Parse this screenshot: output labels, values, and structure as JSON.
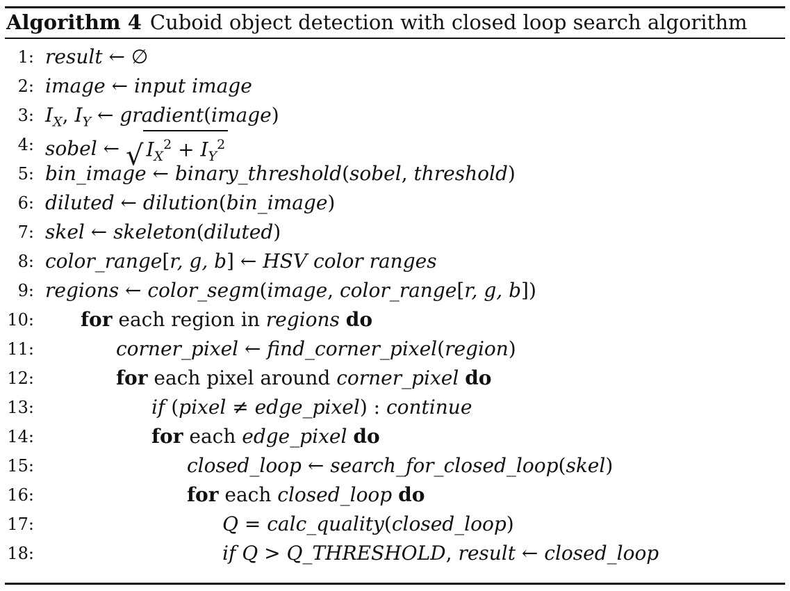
{
  "caption": {
    "label": "Algorithm 4",
    "title": "Cuboid object detection with closed loop search algorithm"
  },
  "lines": [
    {
      "n": "1:",
      "segs": [
        {
          "t": "result",
          "s": "i"
        },
        {
          "t": " ← ∅"
        }
      ]
    },
    {
      "n": "2:",
      "segs": [
        {
          "t": "image",
          "s": "i"
        },
        {
          "t": " ← "
        },
        {
          "t": "input image",
          "s": "i"
        }
      ]
    },
    {
      "n": "3:",
      "segs": [
        {
          "t": "I",
          "s": "i"
        },
        {
          "t": "X",
          "s": "i",
          "sub": true
        },
        {
          "t": ", "
        },
        {
          "t": "I",
          "s": "i"
        },
        {
          "t": "Y",
          "s": "i",
          "sub": true
        },
        {
          "t": " ← "
        },
        {
          "t": "gradient",
          "s": "i"
        },
        {
          "t": "("
        },
        {
          "t": "image",
          "s": "i"
        },
        {
          "t": ")"
        }
      ]
    },
    {
      "n": "4:",
      "segs": [
        {
          "t": "sobel",
          "s": "i"
        },
        {
          "t": " ← "
        },
        {
          "sqrt": [
            {
              "t": "I",
              "s": "i"
            },
            {
              "t": "X",
              "s": "i",
              "sub": true
            },
            {
              "t": "2",
              "sup": true
            },
            {
              "t": " + "
            },
            {
              "t": "I",
              "s": "i"
            },
            {
              "t": "Y",
              "s": "i",
              "sub": true
            },
            {
              "t": "2",
              "sup": true
            }
          ]
        }
      ]
    },
    {
      "n": "5:",
      "segs": [
        {
          "t": "bin_image",
          "s": "i"
        },
        {
          "t": " ← "
        },
        {
          "t": "binary_threshold",
          "s": "i"
        },
        {
          "t": "("
        },
        {
          "t": "sobel",
          "s": "i"
        },
        {
          "t": ", "
        },
        {
          "t": "threshold",
          "s": "i"
        },
        {
          "t": ")"
        }
      ]
    },
    {
      "n": "6:",
      "segs": [
        {
          "t": "diluted",
          "s": "i"
        },
        {
          "t": " ← "
        },
        {
          "t": "dilution",
          "s": "i"
        },
        {
          "t": "("
        },
        {
          "t": "bin_image",
          "s": "i"
        },
        {
          "t": ")"
        }
      ]
    },
    {
      "n": "7:",
      "segs": [
        {
          "t": "skel",
          "s": "i"
        },
        {
          "t": " ← "
        },
        {
          "t": "skeleton",
          "s": "i"
        },
        {
          "t": "("
        },
        {
          "t": "diluted",
          "s": "i"
        },
        {
          "t": ")"
        }
      ]
    },
    {
      "n": "8:",
      "segs": [
        {
          "t": "color_range",
          "s": "i"
        },
        {
          "t": "["
        },
        {
          "t": "r, g, b",
          "s": "i"
        },
        {
          "t": "] ← "
        },
        {
          "t": "HSV color ranges",
          "s": "i"
        }
      ]
    },
    {
      "n": "9:",
      "segs": [
        {
          "t": "regions",
          "s": "i"
        },
        {
          "t": " ← "
        },
        {
          "t": "color_segm",
          "s": "i"
        },
        {
          "t": "("
        },
        {
          "t": "image",
          "s": "i"
        },
        {
          "t": ", "
        },
        {
          "t": "color_range",
          "s": "i"
        },
        {
          "t": "["
        },
        {
          "t": "r, g, b",
          "s": "i"
        },
        {
          "t": "])"
        }
      ]
    },
    {
      "n": "10:",
      "segs": [
        {
          "t": "for",
          "s": "b"
        },
        {
          "t": " each region in "
        },
        {
          "t": "regions",
          "s": "i"
        },
        {
          "t": "  "
        },
        {
          "t": "do",
          "s": "b"
        }
      ]
    },
    {
      "n": "11:",
      "segs": [
        {
          "t": "corner_pixel",
          "s": "i"
        },
        {
          "t": " ← "
        },
        {
          "t": "find_corner_pixel",
          "s": "i"
        },
        {
          "t": "("
        },
        {
          "t": "region",
          "s": "i"
        },
        {
          "t": ")"
        }
      ]
    },
    {
      "n": "12:",
      "segs": [
        {
          "t": "for",
          "s": "b"
        },
        {
          "t": " each pixel around "
        },
        {
          "t": "corner_pixel",
          "s": "i"
        },
        {
          "t": "  "
        },
        {
          "t": "do",
          "s": "b"
        }
      ]
    },
    {
      "n": "13:",
      "segs": [
        {
          "t": "if",
          "s": "i"
        },
        {
          "t": " ("
        },
        {
          "t": "pixel",
          "s": "i"
        },
        {
          "t": " ≠ "
        },
        {
          "t": "edge_pixel",
          "s": "i"
        },
        {
          "t": ") : "
        },
        {
          "t": "continue",
          "s": "i"
        }
      ]
    },
    {
      "n": "14:",
      "segs": [
        {
          "t": "for",
          "s": "b"
        },
        {
          "t": " each "
        },
        {
          "t": "edge_pixel",
          "s": "i"
        },
        {
          "t": "  "
        },
        {
          "t": "do",
          "s": "b"
        }
      ]
    },
    {
      "n": "15:",
      "segs": [
        {
          "t": "closed_loop",
          "s": "i"
        },
        {
          "t": " ← "
        },
        {
          "t": "search_for_closed_loop",
          "s": "i"
        },
        {
          "t": "("
        },
        {
          "t": "skel",
          "s": "i"
        },
        {
          "t": ")"
        }
      ]
    },
    {
      "n": "16:",
      "segs": [
        {
          "t": "for",
          "s": "b"
        },
        {
          "t": " each "
        },
        {
          "t": "closed_loop",
          "s": "i"
        },
        {
          "t": "  "
        },
        {
          "t": "do",
          "s": "b"
        }
      ]
    },
    {
      "n": "17:",
      "segs": [
        {
          "t": "Q",
          "s": "i"
        },
        {
          "t": " = "
        },
        {
          "t": "calc_quality",
          "s": "i"
        },
        {
          "t": "("
        },
        {
          "t": "closed_loop",
          "s": "i"
        },
        {
          "t": ")"
        }
      ]
    },
    {
      "n": "18:",
      "segs": [
        {
          "t": "if Q",
          "s": "i"
        },
        {
          "t": " > "
        },
        {
          "t": "Q_THRESHOLD",
          "s": "i"
        },
        {
          "t": ",  "
        },
        {
          "t": "result",
          "s": "i"
        },
        {
          "t": " ← "
        },
        {
          "t": "closed_loop",
          "s": "i"
        }
      ]
    }
  ]
}
